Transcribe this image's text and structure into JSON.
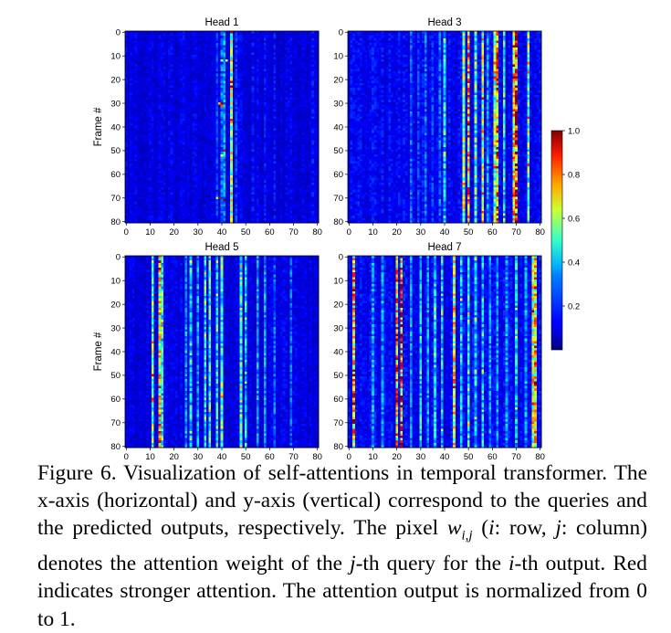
{
  "chart_data": {
    "type": "heatmap",
    "y_label": "Frame #",
    "x_ticks": [
      0,
      10,
      20,
      30,
      40,
      50,
      60,
      70,
      80
    ],
    "y_ticks": [
      0,
      10,
      20,
      30,
      40,
      50,
      60,
      70,
      80
    ],
    "xlim": [
      0,
      80
    ],
    "ylim": [
      0,
      80
    ],
    "grid_size": 81,
    "colormap": "jet",
    "colorbar": {
      "range": [
        0,
        1.0
      ],
      "ticks": [
        "0.2",
        "0.4",
        "0.6",
        "0.8",
        "1.0"
      ],
      "tick_values": [
        0.2,
        0.4,
        0.6,
        0.8,
        1.0
      ]
    },
    "panels": [
      {
        "title": "Head 1",
        "background": 0.1,
        "strong_columns": [
          {
            "col": 38,
            "weight": 0.2
          },
          {
            "col": 40,
            "weight": 0.25
          },
          {
            "col": 41,
            "weight": 0.3
          },
          {
            "col": 44,
            "weight": 0.6
          },
          {
            "col": 46,
            "weight": 0.2
          },
          {
            "col": 53,
            "weight": 0.15
          },
          {
            "col": 58,
            "weight": 0.15
          },
          {
            "col": 62,
            "weight": 0.15
          },
          {
            "col": 78,
            "weight": 0.15
          }
        ],
        "hotspots": [
          {
            "row": 30,
            "col": 40,
            "weight": 1.0
          },
          {
            "row": 30,
            "col": 39,
            "weight": 0.7
          },
          {
            "row": 31,
            "col": 40,
            "weight": 0.8
          },
          {
            "row": 12,
            "col": 40,
            "weight": 0.5
          },
          {
            "row": 12,
            "col": 42,
            "weight": 0.6
          },
          {
            "row": 52,
            "col": 40,
            "weight": 0.6
          },
          {
            "row": 50,
            "col": 41,
            "weight": 0.9
          },
          {
            "row": 70,
            "col": 38,
            "weight": 0.5
          },
          {
            "row": 70,
            "col": 39,
            "weight": 0.95
          },
          {
            "row": 71,
            "col": 41,
            "weight": 1.0
          },
          {
            "row": 66,
            "col": 44,
            "weight": 0.6
          },
          {
            "row": 4,
            "col": 44,
            "weight": 0.7
          }
        ]
      },
      {
        "title": "Head 3",
        "background": 0.12,
        "strong_columns": [
          {
            "col": 26,
            "weight": 0.25
          },
          {
            "col": 29,
            "weight": 0.2
          },
          {
            "col": 32,
            "weight": 0.25
          },
          {
            "col": 35,
            "weight": 0.2
          },
          {
            "col": 38,
            "weight": 0.25
          },
          {
            "col": 40,
            "weight": 0.35
          },
          {
            "col": 48,
            "weight": 0.55
          },
          {
            "col": 50,
            "weight": 0.75
          },
          {
            "col": 53,
            "weight": 0.45
          },
          {
            "col": 56,
            "weight": 0.6
          },
          {
            "col": 58,
            "weight": 0.3
          },
          {
            "col": 61,
            "weight": 0.55
          },
          {
            "col": 62,
            "weight": 0.8
          },
          {
            "col": 65,
            "weight": 0.4
          },
          {
            "col": 69,
            "weight": 0.7
          },
          {
            "col": 70,
            "weight": 0.9
          },
          {
            "col": 75,
            "weight": 0.5
          }
        ],
        "hotspots": []
      },
      {
        "title": "Head 5",
        "background": 0.1,
        "strong_columns": [
          {
            "col": 11,
            "weight": 0.5
          },
          {
            "col": 14,
            "weight": 0.65
          },
          {
            "col": 15,
            "weight": 0.4
          },
          {
            "col": 25,
            "weight": 0.3
          },
          {
            "col": 27,
            "weight": 0.35
          },
          {
            "col": 30,
            "weight": 0.3
          },
          {
            "col": 33,
            "weight": 0.4
          },
          {
            "col": 35,
            "weight": 0.45
          },
          {
            "col": 38,
            "weight": 0.4
          },
          {
            "col": 40,
            "weight": 0.45
          },
          {
            "col": 48,
            "weight": 0.45
          },
          {
            "col": 50,
            "weight": 0.35
          },
          {
            "col": 55,
            "weight": 0.3
          },
          {
            "col": 58,
            "weight": 0.3
          },
          {
            "col": 62,
            "weight": 0.25
          },
          {
            "col": 69,
            "weight": 0.25
          }
        ],
        "hotspots": [
          {
            "row": 50,
            "col": 11,
            "weight": 0.9
          },
          {
            "row": 36,
            "col": 11,
            "weight": 0.8
          },
          {
            "row": 12,
            "col": 14,
            "weight": 0.8
          },
          {
            "row": 28,
            "col": 15,
            "weight": 0.8
          },
          {
            "row": 62,
            "col": 14,
            "weight": 0.75
          }
        ]
      },
      {
        "title": "Head 7",
        "background": 0.12,
        "strong_columns": [
          {
            "col": 2,
            "weight": 0.7
          },
          {
            "col": 10,
            "weight": 0.3
          },
          {
            "col": 14,
            "weight": 0.3
          },
          {
            "col": 20,
            "weight": 0.75
          },
          {
            "col": 22,
            "weight": 0.85
          },
          {
            "col": 26,
            "weight": 0.3
          },
          {
            "col": 30,
            "weight": 0.35
          },
          {
            "col": 33,
            "weight": 0.3
          },
          {
            "col": 36,
            "weight": 0.35
          },
          {
            "col": 39,
            "weight": 0.35
          },
          {
            "col": 44,
            "weight": 0.65
          },
          {
            "col": 47,
            "weight": 0.35
          },
          {
            "col": 50,
            "weight": 0.4
          },
          {
            "col": 53,
            "weight": 0.35
          },
          {
            "col": 56,
            "weight": 0.35
          },
          {
            "col": 59,
            "weight": 0.3
          },
          {
            "col": 62,
            "weight": 0.3
          },
          {
            "col": 66,
            "weight": 0.3
          },
          {
            "col": 70,
            "weight": 0.35
          },
          {
            "col": 74,
            "weight": 0.3
          },
          {
            "col": 77,
            "weight": 0.6
          },
          {
            "col": 78,
            "weight": 0.7
          }
        ],
        "hotspots": [
          {
            "row": 14,
            "col": 2,
            "weight": 1.0
          },
          {
            "row": 48,
            "col": 2,
            "weight": 0.95
          },
          {
            "row": 62,
            "col": 2,
            "weight": 1.0
          },
          {
            "row": 35,
            "col": 20,
            "weight": 1.0
          },
          {
            "row": 48,
            "col": 20,
            "weight": 0.95
          },
          {
            "row": 60,
            "col": 22,
            "weight": 1.0
          },
          {
            "row": 52,
            "col": 22,
            "weight": 0.9
          },
          {
            "row": 45,
            "col": 78,
            "weight": 0.9
          },
          {
            "row": 70,
            "col": 77,
            "weight": 0.8
          }
        ]
      }
    ]
  },
  "caption": {
    "label": "Figure 6.",
    "text_1": " Visualization of self-attentions in temporal transformer. The x-axis (horizontal) and y-axis (vertical) correspond to the queries and the predicted outputs, respectively. The pixel ",
    "w_base": "w",
    "w_sub": "i,j",
    "text_2": " (",
    "i_1": "i",
    "text_3": ": row, ",
    "j_1": "j",
    "text_4": ": column) denotes the attention weight of the ",
    "j_2": "j",
    "text_5": "-th query for the ",
    "i_2": "i",
    "text_6": "-th output. Red indicates stronger attention. The attention output is normalized from 0 to 1."
  }
}
